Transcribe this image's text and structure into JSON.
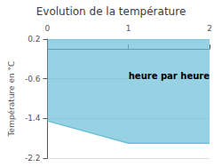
{
  "chart_data": {
    "type": "line",
    "title": "Evolution de la température",
    "ylabel": "Température en °C",
    "x": [
      0,
      1,
      2
    ],
    "values": [
      -1.45,
      -1.9,
      -1.9
    ],
    "color": "#6bbfd8",
    "xlim": [
      0,
      2
    ],
    "xticks": [
      0,
      1,
      2
    ],
    "ylim": [
      -2.2,
      0.2
    ],
    "yticks": [
      0.2,
      -0.6,
      -1.4,
      -2.2
    ],
    "grid": true,
    "annotations": [
      {
        "text": "heure par heure",
        "x": 1.5,
        "y": -0.55
      }
    ]
  }
}
